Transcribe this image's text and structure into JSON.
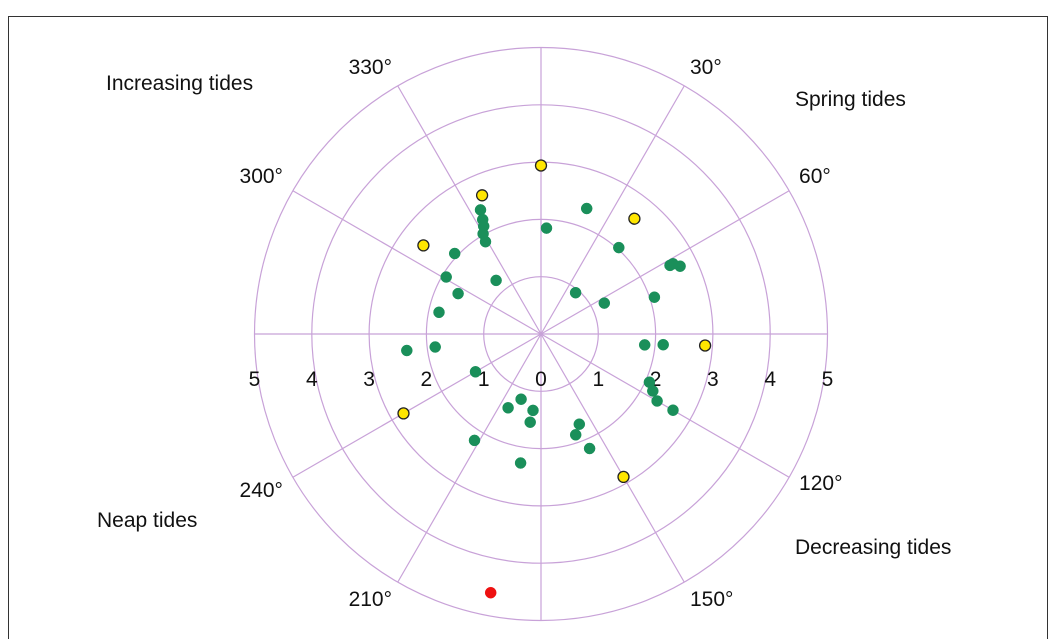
{
  "quadrant_labels": {
    "top_left": "Increasing tides",
    "top_right": "Spring tides",
    "bottom_left": "Neap tides",
    "bottom_right": "Decreasing tides"
  },
  "colors": {
    "grid": "#c8a2d8",
    "green": "#1a8f5a",
    "yellow": "#ffe600",
    "red": "#ee1111",
    "outline": "#222222"
  },
  "chart_data": {
    "type": "scatter",
    "coordinate_system": "polar",
    "title": "",
    "angular_direction": "clockwise, 0° at top",
    "radial_range": [
      0,
      5
    ],
    "radial_rings": [
      1,
      2,
      3,
      4,
      5
    ],
    "radial_tick_labels": [
      "5",
      "4",
      "3",
      "2",
      "1",
      "0",
      "1",
      "2",
      "3",
      "4",
      "5"
    ],
    "angle_ticks": [
      30,
      60,
      120,
      150,
      210,
      240,
      300,
      330
    ],
    "angle_tick_labels": [
      "30°",
      "60°",
      "120°",
      "150°",
      "210°",
      "240°",
      "300°",
      "330°"
    ],
    "spokes_every_deg": 30,
    "grid": true,
    "series": [
      {
        "marker": "green",
        "points": [
          {
            "angle": 334,
            "r": 2.41
          },
          {
            "angle": 333,
            "r": 2.24
          },
          {
            "angle": 332,
            "r": 2.13
          },
          {
            "angle": 330,
            "r": 2.02
          },
          {
            "angle": 329,
            "r": 1.88
          },
          {
            "angle": 3,
            "r": 1.85
          },
          {
            "angle": 20,
            "r": 2.33
          },
          {
            "angle": 42,
            "r": 2.03
          },
          {
            "angle": 64,
            "r": 2.7
          },
          {
            "angle": 62,
            "r": 2.61
          },
          {
            "angle": 62,
            "r": 2.55
          },
          {
            "angle": 72,
            "r": 2.08
          },
          {
            "angle": 64,
            "r": 1.23
          },
          {
            "angle": 40,
            "r": 0.94
          },
          {
            "angle": 96,
            "r": 1.82
          },
          {
            "angle": 95,
            "r": 2.14
          },
          {
            "angle": 114,
            "r": 2.07
          },
          {
            "angle": 117,
            "r": 2.19
          },
          {
            "angle": 120,
            "r": 2.34
          },
          {
            "angle": 120,
            "r": 2.66
          },
          {
            "angle": 157,
            "r": 1.71
          },
          {
            "angle": 161,
            "r": 1.86
          },
          {
            "angle": 157,
            "r": 2.17
          },
          {
            "angle": 187,
            "r": 1.55
          },
          {
            "angle": 197,
            "r": 1.19
          },
          {
            "angle": 186,
            "r": 1.34
          },
          {
            "angle": 204,
            "r": 1.41
          },
          {
            "angle": 212,
            "r": 2.19
          },
          {
            "angle": 189,
            "r": 2.28
          },
          {
            "angle": 240,
            "r": 1.32
          },
          {
            "angle": 263,
            "r": 1.86
          },
          {
            "angle": 263,
            "r": 2.36
          },
          {
            "angle": 282,
            "r": 1.82
          },
          {
            "angle": 296,
            "r": 1.61
          },
          {
            "angle": 301,
            "r": 1.93
          },
          {
            "angle": 313,
            "r": 2.06
          },
          {
            "angle": 320,
            "r": 1.22
          }
        ]
      },
      {
        "marker": "yellow",
        "points": [
          {
            "angle": 0,
            "r": 2.94
          },
          {
            "angle": 337,
            "r": 2.63
          },
          {
            "angle": 307,
            "r": 2.57
          },
          {
            "angle": 39,
            "r": 2.59
          },
          {
            "angle": 94,
            "r": 2.87
          },
          {
            "angle": 150,
            "r": 2.88
          },
          {
            "angle": 240,
            "r": 2.77
          }
        ]
      },
      {
        "marker": "red",
        "points": [
          {
            "angle": 191,
            "r": 4.6
          }
        ]
      }
    ]
  }
}
